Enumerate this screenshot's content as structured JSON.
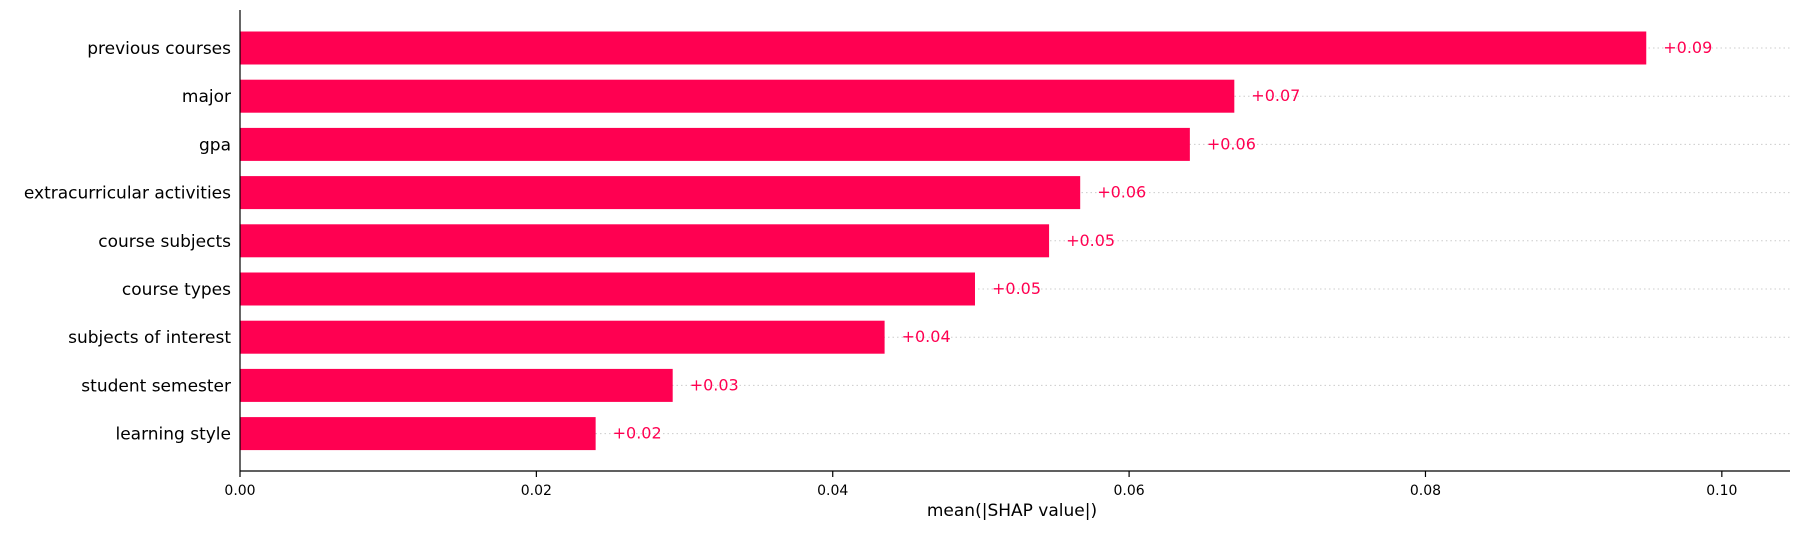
{
  "chart_data": {
    "type": "bar",
    "orientation": "horizontal",
    "categories": [
      "previous courses",
      "major",
      "gpa",
      "extracurricular activities",
      "course subjects",
      "course types",
      "subjects of interest",
      "student semester",
      "learning style"
    ],
    "values": [
      0.0949,
      0.0671,
      0.0641,
      0.0567,
      0.0546,
      0.0496,
      0.0435,
      0.0292,
      0.024
    ],
    "data_labels": [
      "+0.09",
      "+0.07",
      "+0.06",
      "+0.06",
      "+0.05",
      "+0.05",
      "+0.04",
      "+0.03",
      "+0.02"
    ],
    "title": "",
    "xlabel": "mean(|SHAP value|)",
    "ylabel": "",
    "xlim": [
      0,
      0.1046
    ],
    "xticks": [
      0.0,
      0.02,
      0.04,
      0.06,
      0.08,
      0.1
    ],
    "xtick_labels": [
      "0.00",
      "0.02",
      "0.04",
      "0.06",
      "0.08",
      "0.10"
    ],
    "grid": "dotted horizontal guide lines",
    "legend": "none",
    "colors": {
      "bar": "#ff0051",
      "label": "#ff0051",
      "axis": "#000000",
      "guide": "#cccccc"
    }
  }
}
